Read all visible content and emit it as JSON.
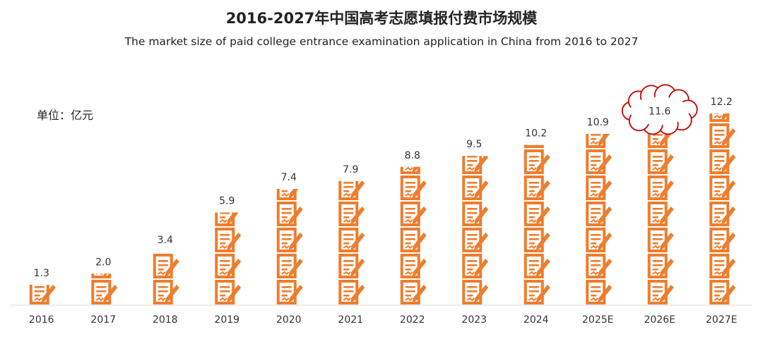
{
  "chart_data": {
    "type": "bar",
    "title": "2016-2027年中国高考志愿填报付费市场规模",
    "subtitle": "The market size of paid college entrance examination application in China from 2016 to 2027",
    "unit_label": "单位：亿元",
    "categories": [
      "2016",
      "2017",
      "2018",
      "2019",
      "2020",
      "2021",
      "2022",
      "2023",
      "2024",
      "2025E",
      "2026E",
      "2027E"
    ],
    "values": [
      1.3,
      2.0,
      3.4,
      5.9,
      7.4,
      7.9,
      8.8,
      9.5,
      10.2,
      10.9,
      11.6,
      12.2
    ],
    "value_labels": [
      "1.3",
      "2.0",
      "3.4",
      "5.9",
      "7.4",
      "7.9",
      "8.8",
      "9.5",
      "10.2",
      "10.9",
      "11.6",
      "12.2"
    ],
    "highlighted_category": "2026E",
    "ylim": [
      0,
      12.2
    ],
    "grid": false,
    "bar_color": "#ee7d2d",
    "highlight_outline_color": "#c00000",
    "icon": "application-form-with-pencil-icon"
  }
}
